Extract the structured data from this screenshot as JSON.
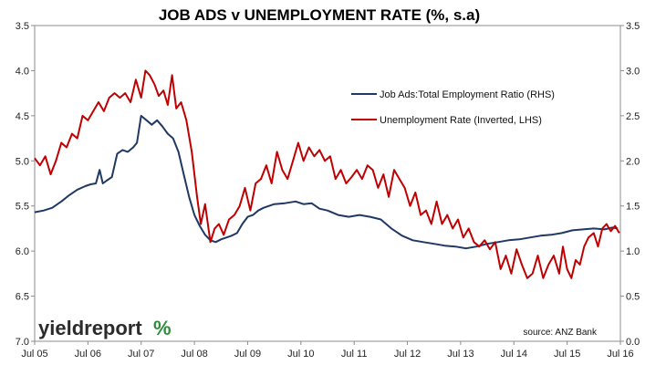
{
  "chart_data": {
    "type": "line",
    "title": "JOB ADS v UNEMPLOYMENT RATE (%, s.a)",
    "x_ticks": [
      "Jul 05",
      "Jul 06",
      "Jul 07",
      "Jul 08",
      "Jul 09",
      "Jul 10",
      "Jul 11",
      "Jul 12",
      "Jul 13",
      "Jul 14",
      "Jul 15",
      "Jul 16"
    ],
    "x_range": [
      2005.5,
      2016.5
    ],
    "y_left": {
      "ticks": [
        "3.5",
        "4.0",
        "4.5",
        "5.0",
        "5.5",
        "6.0",
        "6.5",
        "7.0"
      ],
      "range": [
        3.5,
        7.0
      ],
      "inverted": true
    },
    "y_right": {
      "ticks": [
        "3.5",
        "3.0",
        "2.5",
        "2.0",
        "1.5",
        "1.0",
        "0.5",
        "0.0"
      ],
      "range": [
        0.0,
        3.5
      ],
      "inverted": false
    },
    "grid": false,
    "legend_position": "top-right",
    "series": [
      {
        "name": "Job Ads:Total Employment Ratio (RHS)",
        "axis": "right",
        "color": "#1f3864",
        "points": [
          [
            2005.5,
            1.43
          ],
          [
            2005.67,
            1.45
          ],
          [
            2005.83,
            1.48
          ],
          [
            2006.0,
            1.55
          ],
          [
            2006.15,
            1.62
          ],
          [
            2006.3,
            1.68
          ],
          [
            2006.45,
            1.72
          ],
          [
            2006.55,
            1.74
          ],
          [
            2006.65,
            1.75
          ],
          [
            2006.72,
            1.9
          ],
          [
            2006.78,
            1.75
          ],
          [
            2006.85,
            1.78
          ],
          [
            2006.95,
            1.82
          ],
          [
            2007.05,
            2.08
          ],
          [
            2007.15,
            2.12
          ],
          [
            2007.25,
            2.1
          ],
          [
            2007.35,
            2.15
          ],
          [
            2007.42,
            2.2
          ],
          [
            2007.5,
            2.5
          ],
          [
            2007.6,
            2.45
          ],
          [
            2007.7,
            2.4
          ],
          [
            2007.8,
            2.45
          ],
          [
            2007.9,
            2.38
          ],
          [
            2008.0,
            2.3
          ],
          [
            2008.1,
            2.25
          ],
          [
            2008.2,
            2.1
          ],
          [
            2008.3,
            1.85
          ],
          [
            2008.4,
            1.6
          ],
          [
            2008.5,
            1.4
          ],
          [
            2008.6,
            1.28
          ],
          [
            2008.7,
            1.18
          ],
          [
            2008.8,
            1.12
          ],
          [
            2008.9,
            1.1
          ],
          [
            2009.0,
            1.13
          ],
          [
            2009.1,
            1.15
          ],
          [
            2009.2,
            1.17
          ],
          [
            2009.3,
            1.2
          ],
          [
            2009.4,
            1.3
          ],
          [
            2009.5,
            1.38
          ],
          [
            2009.6,
            1.4
          ],
          [
            2009.7,
            1.45
          ],
          [
            2009.8,
            1.48
          ],
          [
            2009.9,
            1.5
          ],
          [
            2010.0,
            1.52
          ],
          [
            2010.2,
            1.53
          ],
          [
            2010.4,
            1.55
          ],
          [
            2010.55,
            1.52
          ],
          [
            2010.7,
            1.53
          ],
          [
            2010.85,
            1.47
          ],
          [
            2011.0,
            1.45
          ],
          [
            2011.2,
            1.4
          ],
          [
            2011.4,
            1.38
          ],
          [
            2011.6,
            1.4
          ],
          [
            2011.8,
            1.38
          ],
          [
            2012.0,
            1.35
          ],
          [
            2012.2,
            1.25
          ],
          [
            2012.4,
            1.17
          ],
          [
            2012.6,
            1.12
          ],
          [
            2012.8,
            1.1
          ],
          [
            2013.0,
            1.08
          ],
          [
            2013.2,
            1.06
          ],
          [
            2013.4,
            1.05
          ],
          [
            2013.6,
            1.03
          ],
          [
            2013.8,
            1.05
          ],
          [
            2014.0,
            1.08
          ],
          [
            2014.2,
            1.1
          ],
          [
            2014.4,
            1.12
          ],
          [
            2014.6,
            1.13
          ],
          [
            2014.8,
            1.15
          ],
          [
            2015.0,
            1.17
          ],
          [
            2015.2,
            1.18
          ],
          [
            2015.4,
            1.2
          ],
          [
            2015.6,
            1.23
          ],
          [
            2015.8,
            1.24
          ],
          [
            2016.0,
            1.25
          ],
          [
            2016.2,
            1.24
          ],
          [
            2016.35,
            1.26
          ],
          [
            2016.45,
            1.25
          ]
        ]
      },
      {
        "name": "Unemployment Rate (Inverted, LHS)",
        "axis": "left",
        "color": "#c00000",
        "points": [
          [
            2005.5,
            4.97
          ],
          [
            2005.6,
            5.05
          ],
          [
            2005.7,
            4.95
          ],
          [
            2005.8,
            5.15
          ],
          [
            2005.9,
            5.0
          ],
          [
            2006.0,
            4.8
          ],
          [
            2006.1,
            4.85
          ],
          [
            2006.2,
            4.7
          ],
          [
            2006.3,
            4.75
          ],
          [
            2006.4,
            4.5
          ],
          [
            2006.5,
            4.55
          ],
          [
            2006.6,
            4.45
          ],
          [
            2006.7,
            4.35
          ],
          [
            2006.8,
            4.45
          ],
          [
            2006.9,
            4.3
          ],
          [
            2007.0,
            4.25
          ],
          [
            2007.1,
            4.3
          ],
          [
            2007.2,
            4.25
          ],
          [
            2007.3,
            4.35
          ],
          [
            2007.4,
            4.1
          ],
          [
            2007.5,
            4.3
          ],
          [
            2007.58,
            4.0
          ],
          [
            2007.66,
            4.05
          ],
          [
            2007.75,
            4.15
          ],
          [
            2007.83,
            4.28
          ],
          [
            2007.92,
            4.22
          ],
          [
            2008.0,
            4.38
          ],
          [
            2008.08,
            4.05
          ],
          [
            2008.16,
            4.42
          ],
          [
            2008.25,
            4.35
          ],
          [
            2008.35,
            4.55
          ],
          [
            2008.45,
            4.9
          ],
          [
            2008.55,
            5.4
          ],
          [
            2008.62,
            5.7
          ],
          [
            2008.7,
            5.48
          ],
          [
            2008.8,
            5.9
          ],
          [
            2008.88,
            5.75
          ],
          [
            2008.96,
            5.7
          ],
          [
            2009.05,
            5.82
          ],
          [
            2009.15,
            5.65
          ],
          [
            2009.25,
            5.6
          ],
          [
            2009.35,
            5.5
          ],
          [
            2009.45,
            5.3
          ],
          [
            2009.55,
            5.55
          ],
          [
            2009.65,
            5.25
          ],
          [
            2009.75,
            5.2
          ],
          [
            2009.85,
            5.05
          ],
          [
            2009.95,
            5.25
          ],
          [
            2010.05,
            4.9
          ],
          [
            2010.15,
            5.1
          ],
          [
            2010.25,
            5.2
          ],
          [
            2010.35,
            5.0
          ],
          [
            2010.45,
            4.8
          ],
          [
            2010.55,
            5.0
          ],
          [
            2010.65,
            4.85
          ],
          [
            2010.75,
            4.95
          ],
          [
            2010.85,
            4.88
          ],
          [
            2010.95,
            5.0
          ],
          [
            2011.05,
            4.95
          ],
          [
            2011.15,
            5.2
          ],
          [
            2011.25,
            5.1
          ],
          [
            2011.35,
            5.25
          ],
          [
            2011.45,
            5.18
          ],
          [
            2011.55,
            5.1
          ],
          [
            2011.65,
            5.2
          ],
          [
            2011.75,
            5.05
          ],
          [
            2011.85,
            5.1
          ],
          [
            2011.95,
            5.3
          ],
          [
            2012.05,
            5.15
          ],
          [
            2012.15,
            5.4
          ],
          [
            2012.25,
            5.1
          ],
          [
            2012.35,
            5.2
          ],
          [
            2012.45,
            5.3
          ],
          [
            2012.55,
            5.5
          ],
          [
            2012.65,
            5.35
          ],
          [
            2012.75,
            5.6
          ],
          [
            2012.85,
            5.55
          ],
          [
            2012.95,
            5.7
          ],
          [
            2013.05,
            5.45
          ],
          [
            2013.15,
            5.7
          ],
          [
            2013.25,
            5.6
          ],
          [
            2013.35,
            5.75
          ],
          [
            2013.45,
            5.65
          ],
          [
            2013.55,
            5.85
          ],
          [
            2013.65,
            5.75
          ],
          [
            2013.75,
            5.9
          ],
          [
            2013.85,
            5.95
          ],
          [
            2013.95,
            5.88
          ],
          [
            2014.05,
            5.98
          ],
          [
            2014.15,
            5.9
          ],
          [
            2014.25,
            6.2
          ],
          [
            2014.35,
            6.05
          ],
          [
            2014.45,
            6.25
          ],
          [
            2014.55,
            5.98
          ],
          [
            2014.65,
            6.15
          ],
          [
            2014.75,
            6.3
          ],
          [
            2014.85,
            6.25
          ],
          [
            2014.95,
            6.05
          ],
          [
            2015.05,
            6.3
          ],
          [
            2015.15,
            6.15
          ],
          [
            2015.25,
            6.05
          ],
          [
            2015.35,
            6.25
          ],
          [
            2015.42,
            5.95
          ],
          [
            2015.5,
            6.2
          ],
          [
            2015.58,
            6.3
          ],
          [
            2015.66,
            6.1
          ],
          [
            2015.74,
            6.15
          ],
          [
            2015.82,
            5.95
          ],
          [
            2015.9,
            5.85
          ],
          [
            2016.0,
            5.8
          ],
          [
            2016.08,
            5.95
          ],
          [
            2016.16,
            5.75
          ],
          [
            2016.24,
            5.7
          ],
          [
            2016.32,
            5.78
          ],
          [
            2016.4,
            5.72
          ],
          [
            2016.48,
            5.8
          ]
        ]
      }
    ],
    "source": "source: ANZ Bank"
  },
  "branding": {
    "logo_text": "yieldreport",
    "logo_symbol": "%",
    "logo_colors": {
      "text": "#2b2b2b",
      "percent_green": "#2e8b3c",
      "percent_red": "#c00000"
    }
  }
}
